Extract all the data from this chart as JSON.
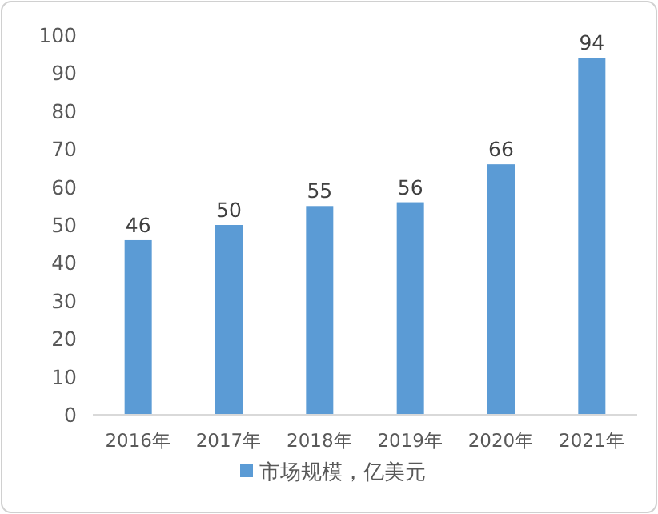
{
  "chart_data": {
    "type": "bar",
    "categories": [
      "2016年",
      "2017年",
      "2018年",
      "2019年",
      "2020年",
      "2021年"
    ],
    "series": [
      {
        "name": "市场规模，亿美元",
        "color": "#5b9bd5",
        "values": [
          46,
          50,
          55,
          56,
          66,
          94
        ]
      }
    ],
    "ylim": [
      0,
      100
    ],
    "yticks": [
      0,
      10,
      20,
      30,
      40,
      50,
      60,
      70,
      80,
      90,
      100
    ],
    "data_labels": true,
    "legend": "bottom"
  }
}
